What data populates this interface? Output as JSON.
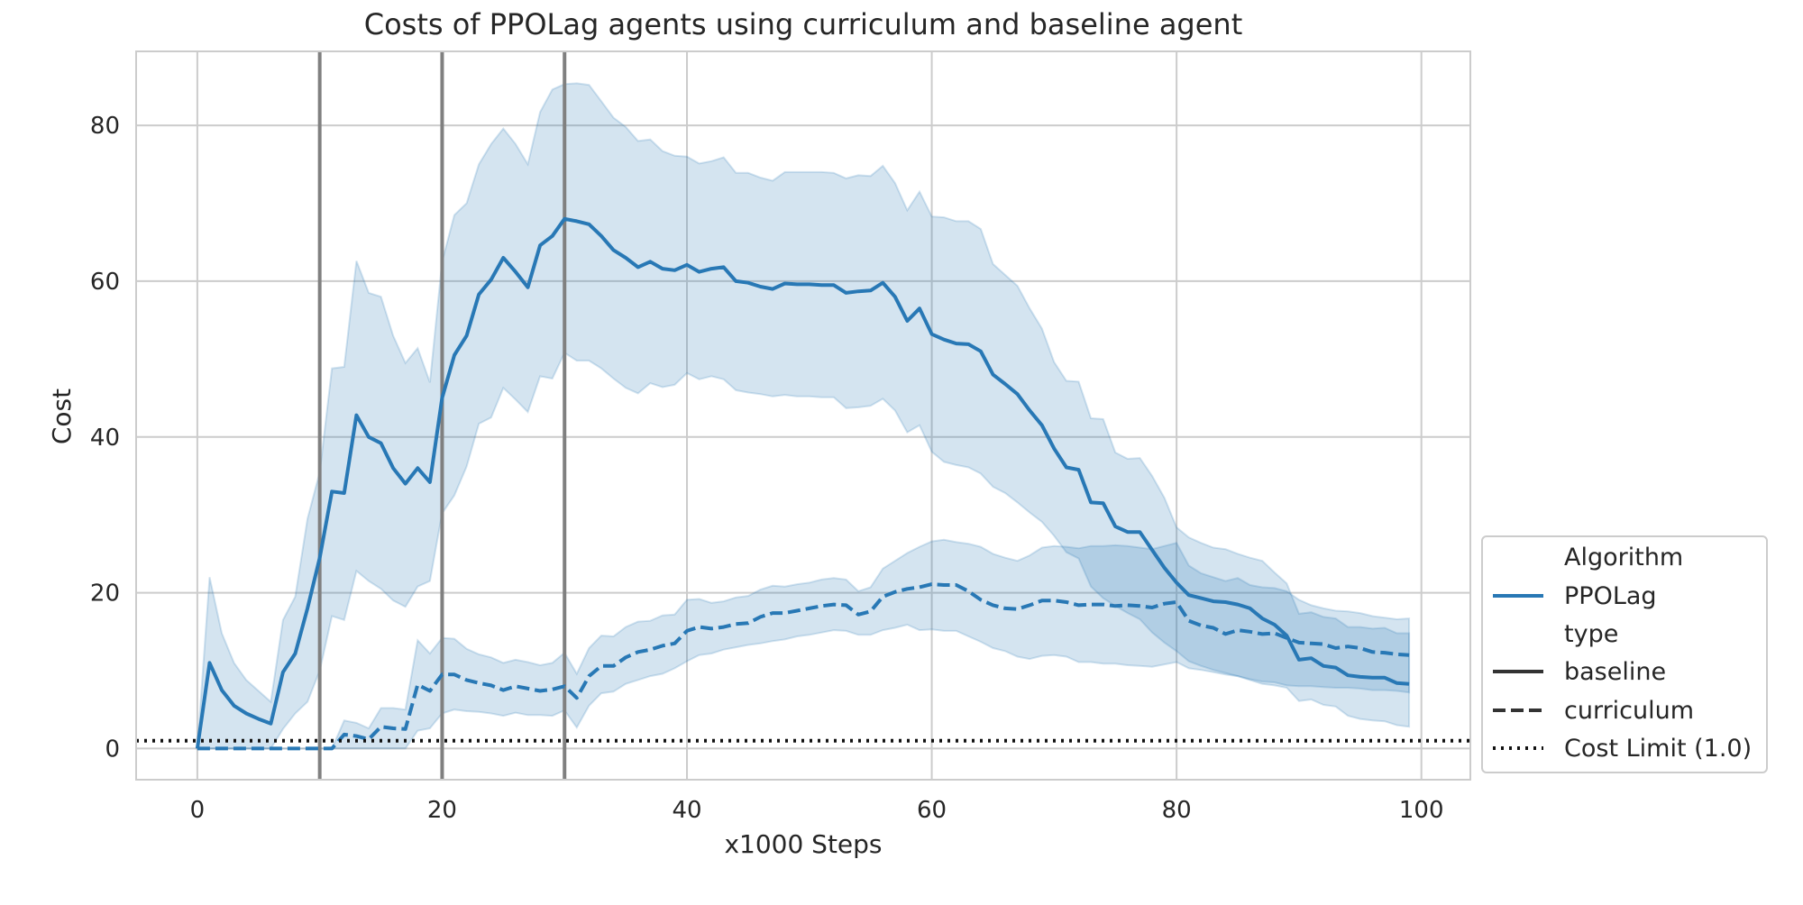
{
  "chart_data": {
    "type": "line",
    "title": "Costs of PPOLag agents using curriculum and baseline agent",
    "xlabel": "x1000 Steps",
    "ylabel": "Cost",
    "xlim": [
      -5,
      104
    ],
    "ylim": [
      -4,
      89.5
    ],
    "x_ticks": [
      0,
      20,
      40,
      60,
      80,
      100
    ],
    "y_ticks": [
      0,
      20,
      40,
      60,
      80
    ],
    "grid": true,
    "legend_position": "bottom-right outside",
    "colors": {
      "series": "#2878b5",
      "band": "#2878b5",
      "vlines": "#808080",
      "limit": "#111111",
      "grid": "#cccccc"
    },
    "vertical_lines": [
      10,
      20,
      30
    ],
    "cost_limit": {
      "value": 1.0,
      "label": "Cost Limit (1.0)"
    },
    "legend": {
      "sections": [
        {
          "title": "Algorithm",
          "items": [
            {
              "label": "PPOLag",
              "style": "solid-blue"
            }
          ]
        },
        {
          "title": "type",
          "items": [
            {
              "label": "baseline",
              "style": "solid"
            },
            {
              "label": "curriculum",
              "style": "dashed"
            },
            {
              "label": "Cost Limit (1.0)",
              "style": "dotted"
            }
          ]
        }
      ]
    },
    "series": [
      {
        "name": "baseline",
        "algorithm": "PPOLag",
        "type": "baseline",
        "x": [
          0,
          1,
          2,
          3,
          4,
          5,
          6,
          7,
          8,
          9,
          10,
          11,
          12,
          13,
          14,
          15,
          16,
          17,
          18,
          19,
          20,
          21,
          22,
          23,
          24,
          25,
          26,
          27,
          28,
          29,
          30,
          31,
          32,
          33,
          34,
          35,
          36,
          37,
          38,
          39,
          40,
          41,
          42,
          43,
          44,
          45,
          46,
          47,
          48,
          49,
          50,
          51,
          52,
          53,
          54,
          55,
          56,
          57,
          58,
          59,
          60,
          61,
          62,
          63,
          64,
          65,
          66,
          67,
          68,
          69,
          70,
          71,
          72,
          73,
          74,
          75,
          76,
          77,
          78,
          79,
          80,
          81,
          82,
          83,
          84,
          85,
          86,
          87,
          88,
          89,
          90,
          91,
          92,
          93,
          94,
          95,
          96,
          97,
          98,
          99
        ],
        "values": [
          0,
          11,
          7.5,
          5.5,
          4.5,
          3.8,
          3.2,
          9.8,
          12.2,
          18,
          24.5,
          33,
          32.8,
          42.8,
          40,
          39.2,
          36,
          34,
          36,
          34.2,
          45,
          50.5,
          53,
          58.3,
          60.2,
          63,
          61.2,
          59.2,
          64.6,
          65.8,
          68,
          67.7,
          67.3,
          65.8,
          64,
          63,
          61.8,
          62.5,
          61.6,
          61.4,
          62.1,
          61.2,
          61.6,
          61.8,
          60,
          59.8,
          59.3,
          59,
          59.7,
          59.6,
          59.6,
          59.5,
          59.5,
          58.5,
          58.7,
          58.8,
          59.8,
          58,
          54.9,
          56.5,
          53.2,
          52.5,
          52,
          51.9,
          51,
          48,
          46.8,
          45.5,
          43.4,
          41.5,
          38.5,
          36.1,
          35.8,
          31.6,
          31.5,
          28.5,
          27.8,
          27.8,
          25.5,
          23.2,
          21.3,
          19.7,
          19.3,
          18.9,
          18.8,
          18.5,
          18,
          16.7,
          15.9,
          14.5,
          11.4,
          11.6,
          10.6,
          10.4,
          9.4,
          9.2,
          9.1,
          9.1,
          8.4,
          8.3
        ],
        "lower": [
          0,
          0,
          0,
          0,
          0,
          0,
          0,
          2.5,
          4.5,
          6,
          10,
          17,
          16.5,
          22.8,
          21.5,
          20.5,
          19,
          18.2,
          20.8,
          21.5,
          30.2,
          32.5,
          36.2,
          41.7,
          42.5,
          46.3,
          44.8,
          43.2,
          47.8,
          47.5,
          50.8,
          49.8,
          49.8,
          48.8,
          47.5,
          46.3,
          45.6,
          46.9,
          46.4,
          46.7,
          48.2,
          47.4,
          47.8,
          47.4,
          46,
          45.7,
          45.5,
          45.2,
          45.4,
          45.2,
          45.2,
          45.1,
          45.1,
          43.7,
          43.8,
          44,
          44.9,
          43.4,
          40.6,
          41.5,
          38.1,
          36.8,
          36.4,
          36.1,
          35.3,
          33.6,
          32.8,
          31.6,
          30.3,
          29.1,
          27.3,
          25.2,
          24.4,
          20.8,
          19.3,
          18.3,
          17.4,
          16.6,
          14.9,
          13.6,
          12.5,
          11.2,
          10.6,
          10.1,
          9.7,
          9.3,
          8.8,
          8.3,
          8.1,
          7.8,
          6.1,
          6.3,
          5.6,
          5.4,
          4.2,
          3.8,
          3.6,
          3.5,
          3,
          2.8
        ],
        "upper": [
          0,
          22,
          14.8,
          11,
          8.8,
          7.4,
          6,
          16.5,
          19.5,
          29.5,
          35.5,
          48.8,
          49,
          62.6,
          58.5,
          58,
          53,
          49.5,
          51.4,
          47,
          62.5,
          68.5,
          70,
          75,
          77.6,
          79.6,
          77.6,
          75,
          81.7,
          84.6,
          85.3,
          85.4,
          85.2,
          83.1,
          81,
          79.8,
          78,
          78.2,
          76.7,
          76.1,
          76,
          75.1,
          75.4,
          75.9,
          73.9,
          73.9,
          73.3,
          72.9,
          74,
          74,
          74,
          74,
          73.9,
          73.2,
          73.6,
          73.5,
          74.8,
          72.6,
          69.1,
          71.5,
          68.3,
          68.2,
          67.7,
          67.7,
          66.7,
          62.2,
          60.8,
          59.4,
          56.5,
          53.9,
          49.6,
          47.2,
          47.1,
          42.4,
          42.3,
          38,
          37.2,
          37.3,
          35,
          32.2,
          28.4,
          27.1,
          26.4,
          25.8,
          25.6,
          25,
          24.5,
          24.1,
          22.6,
          21.2,
          17.3,
          17.5,
          16.9,
          16.7,
          15.6,
          15.6,
          15.4,
          15.5,
          14.8,
          14.8
        ]
      },
      {
        "name": "curriculum",
        "algorithm": "PPOLag",
        "type": "curriculum",
        "x": [
          0,
          1,
          2,
          3,
          4,
          5,
          6,
          7,
          8,
          9,
          10,
          11,
          12,
          13,
          14,
          15,
          16,
          17,
          18,
          19,
          20,
          21,
          22,
          23,
          24,
          25,
          26,
          27,
          28,
          29,
          30,
          31,
          32,
          33,
          34,
          35,
          36,
          37,
          38,
          39,
          40,
          41,
          42,
          43,
          44,
          45,
          46,
          47,
          48,
          49,
          50,
          51,
          52,
          53,
          54,
          55,
          56,
          57,
          58,
          59,
          60,
          61,
          62,
          63,
          64,
          65,
          66,
          67,
          68,
          69,
          70,
          71,
          72,
          73,
          74,
          75,
          76,
          77,
          78,
          79,
          80,
          81,
          82,
          83,
          84,
          85,
          86,
          87,
          88,
          89,
          90,
          91,
          92,
          93,
          94,
          95,
          96,
          97,
          98,
          99
        ],
        "values": [
          0,
          0,
          0,
          0,
          0,
          0,
          0,
          0,
          0,
          0,
          0,
          0,
          1.8,
          1.6,
          1.2,
          2.8,
          2.6,
          2.5,
          8.2,
          7.4,
          9.5,
          9.5,
          8.8,
          8.4,
          8.1,
          7.5,
          8,
          7.7,
          7.4,
          7.6,
          8,
          6.5,
          9.3,
          10.6,
          10.6,
          11.7,
          12.4,
          12.7,
          13.2,
          13.5,
          15.1,
          15.6,
          15.4,
          15.6,
          16,
          16.1,
          16.9,
          17.4,
          17.4,
          17.7,
          18,
          18.3,
          18.5,
          18.4,
          17.2,
          17.6,
          19.5,
          20.1,
          20.5,
          20.7,
          21.1,
          21,
          21,
          20.2,
          19.1,
          18.4,
          18,
          17.9,
          18.4,
          19,
          19,
          18.8,
          18.4,
          18.5,
          18.5,
          18.3,
          18.4,
          18.3,
          18.1,
          18.6,
          18.8,
          16.4,
          15.8,
          15.5,
          14.7,
          15.2,
          15,
          14.7,
          14.8,
          14.2,
          13.6,
          13.5,
          13.4,
          12.9,
          13.1,
          12.9,
          12.4,
          12.3,
          12.1,
          12
        ],
        "lower": [
          0,
          0,
          0,
          0,
          0,
          0,
          0,
          0,
          0,
          0,
          0,
          0,
          0,
          0,
          0,
          0,
          0,
          0,
          2.3,
          2.6,
          4.5,
          5,
          4.8,
          4.7,
          4.5,
          4.2,
          4.6,
          4.3,
          4.3,
          4.2,
          4.9,
          2.7,
          5.5,
          7.1,
          7.3,
          8.3,
          8.8,
          9.3,
          9.6,
          10.3,
          11.2,
          12,
          12.2,
          12.7,
          13,
          13.3,
          13.5,
          13.8,
          14,
          14.4,
          14.6,
          14.9,
          15.2,
          15.1,
          14.6,
          14.6,
          15.2,
          15.5,
          15.9,
          15.2,
          15.3,
          15.1,
          15.1,
          14.4,
          13.7,
          12.9,
          12.5,
          11.8,
          11.5,
          11.9,
          12,
          11.8,
          11.1,
          11.1,
          10.9,
          10.9,
          10.7,
          10.6,
          10.5,
          10.8,
          11.1,
          10.3,
          10.1,
          9.8,
          9.5,
          9.3,
          8.9,
          8.6,
          8.5,
          8.1,
          8,
          8,
          7.9,
          7.8,
          7.8,
          7.7,
          7.5,
          7.5,
          7.4,
          7.2
        ],
        "upper": [
          0,
          0,
          0,
          0,
          0,
          0,
          0,
          0,
          0,
          0,
          0,
          0,
          3.6,
          3.3,
          2.6,
          5.2,
          5.2,
          5,
          13.9,
          12.2,
          14.2,
          14.1,
          12.8,
          12.1,
          11.7,
          11,
          11.4,
          11.1,
          10.7,
          11,
          12.3,
          9.6,
          12.9,
          14.5,
          14.4,
          15.6,
          16.3,
          16.4,
          17.1,
          17.2,
          19.1,
          19.2,
          18.7,
          18.9,
          19.4,
          19.6,
          20.4,
          20.9,
          20.8,
          21.1,
          21.3,
          21.7,
          21.9,
          21.7,
          20.2,
          20.7,
          23.1,
          24.1,
          25.1,
          25.9,
          26.6,
          26.8,
          26.5,
          26.3,
          25.9,
          25,
          24.5,
          24.1,
          24.8,
          25.8,
          26,
          25.9,
          25.7,
          26,
          26,
          26.1,
          26,
          25.8,
          25.6,
          26,
          26.4,
          23.5,
          22.5,
          22,
          21.5,
          21.9,
          21,
          20.7,
          20.6,
          20.2,
          19.1,
          18.4,
          18,
          17.7,
          17.6,
          17.4,
          17,
          16.8,
          16.6,
          16.7
        ]
      }
    ]
  }
}
